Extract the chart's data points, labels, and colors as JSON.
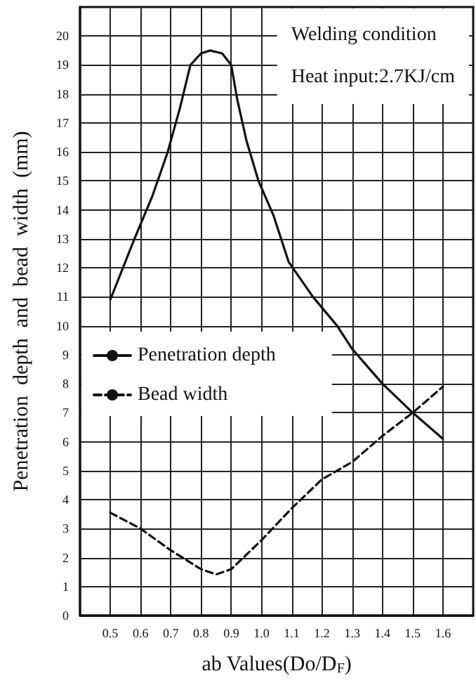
{
  "chart_data": {
    "type": "line",
    "xlabel": "ab Values(Do/D$_{F}$)",
    "ylabel": "Penetration  depth  and  bead  width  (mm)",
    "annotations": [
      "Welding condition",
      "Heat input:2.7KJ/cm"
    ],
    "xlim": [
      0.4,
      1.7
    ],
    "xticks": [
      0.5,
      0.6,
      0.7,
      0.8,
      0.9,
      {
        "value": 1,
        "label": "1.0"
      },
      1.1,
      1.2,
      1.3,
      1.4,
      1.5,
      1.6
    ],
    "ylim": [
      0,
      21
    ],
    "yticks": [
      0,
      1,
      2,
      3,
      4,
      5,
      6,
      7,
      8,
      9,
      10,
      11,
      12,
      13,
      14,
      15,
      16,
      17,
      18,
      19,
      20
    ],
    "grid": true,
    "legend": "left",
    "marker": "none",
    "series": [
      {
        "name": "Penetration depth",
        "color": "#111111",
        "line_style": "solid",
        "x": [
          0.5,
          0.58,
          0.64,
          0.69,
          0.73,
          0.765,
          0.8,
          0.83,
          0.87,
          0.9,
          0.92,
          0.95,
          0.99,
          1.04,
          1.09,
          1.17,
          1.25,
          1.3,
          1.4,
          1.5,
          1.6
        ],
        "values": [
          10.9,
          13,
          14.5,
          16,
          17.5,
          19,
          19.4,
          19.5,
          19.4,
          19,
          17.8,
          16.4,
          15,
          13.8,
          12.2,
          11,
          10,
          9.2,
          8,
          7,
          6.1
        ]
      },
      {
        "name": "Bead width",
        "color": "#111111",
        "line_style": "dashed",
        "x": [
          0.5,
          0.6,
          0.7,
          0.8,
          0.85,
          0.9,
          1,
          1.1,
          1.2,
          1.3,
          1.4,
          1.5,
          1.6
        ],
        "values": [
          3.55,
          3,
          2.25,
          1.6,
          1.42,
          1.6,
          2.6,
          3.7,
          4.7,
          5.3,
          6.2,
          7,
          7.9
        ]
      }
    ]
  }
}
